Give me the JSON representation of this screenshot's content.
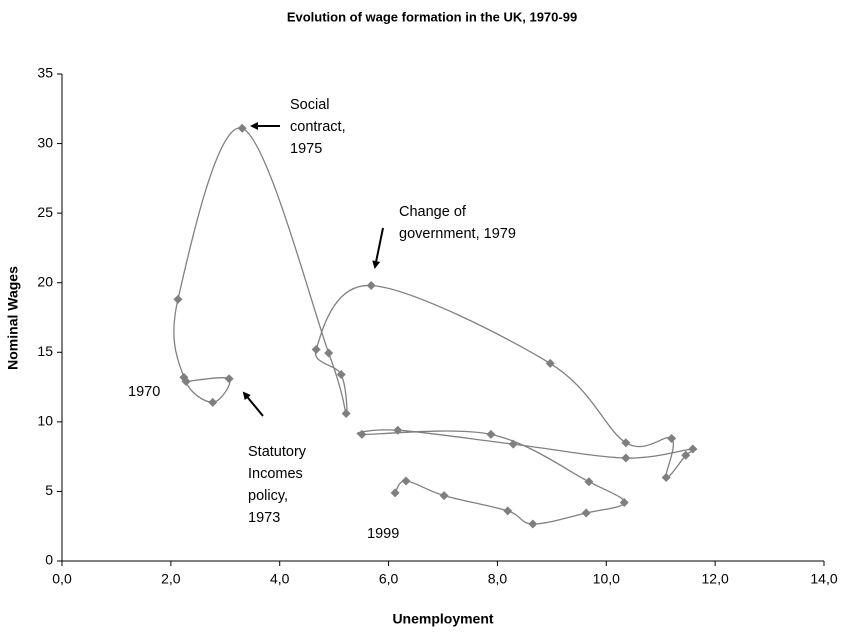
{
  "chart_data": {
    "type": "scatter",
    "title": "Evolution of wage formation in the UK, 1970-99",
    "x_label": "Unemployment",
    "y_label": "Nominal Wages",
    "connected": true,
    "smooth": true,
    "line_color": "#808080",
    "marker_color": "#7f7f7f",
    "series": [
      {
        "x": [
          2.28,
          3.07,
          2.77,
          2.24,
          2.13,
          3.31,
          4.9,
          5.22,
          5.13,
          4.67,
          5.68,
          8.97,
          10.36,
          11.2,
          11.1,
          11.46,
          11.59,
          10.36,
          8.29,
          6.17,
          5.51,
          7.88,
          9.68,
          10.33,
          9.63,
          8.65,
          8.19,
          7.02,
          6.32,
          6.12
        ],
        "values": [
          12.9,
          13.1,
          11.4,
          13.2,
          18.8,
          31.1,
          14.95,
          10.6,
          13.4,
          15.2,
          19.8,
          14.2,
          8.5,
          8.8,
          6.0,
          7.6,
          8.05,
          7.4,
          8.4,
          9.4,
          9.1,
          9.1,
          5.7,
          4.2,
          3.45,
          2.66,
          3.6,
          4.7,
          5.75,
          4.9
        ]
      }
    ],
    "xlim": [
      0,
      14
    ],
    "ylim": [
      0,
      35
    ],
    "xticks": [
      {
        "value": 0,
        "label": "0,0"
      },
      {
        "value": 2,
        "label": "2,0"
      },
      {
        "value": 4,
        "label": "4,0"
      },
      {
        "value": 6,
        "label": "6,0"
      },
      {
        "value": 8,
        "label": "8,0"
      },
      {
        "value": 10,
        "label": "10,0"
      },
      {
        "value": 12,
        "label": "12,0"
      },
      {
        "value": 14,
        "label": "14,0"
      }
    ],
    "yticks": [
      0,
      5,
      10,
      15,
      20,
      25,
      30,
      35
    ],
    "annotations": [
      {
        "lines": [
          "Social",
          "contract,",
          "1975"
        ]
      },
      {
        "lines": [
          "Change of",
          "government, 1979"
        ]
      },
      {
        "lines": [
          "1970"
        ]
      },
      {
        "lines": [
          "Statutory",
          "Incomes",
          "policy,",
          "1973"
        ]
      },
      {
        "lines": [
          "1999"
        ]
      }
    ]
  }
}
